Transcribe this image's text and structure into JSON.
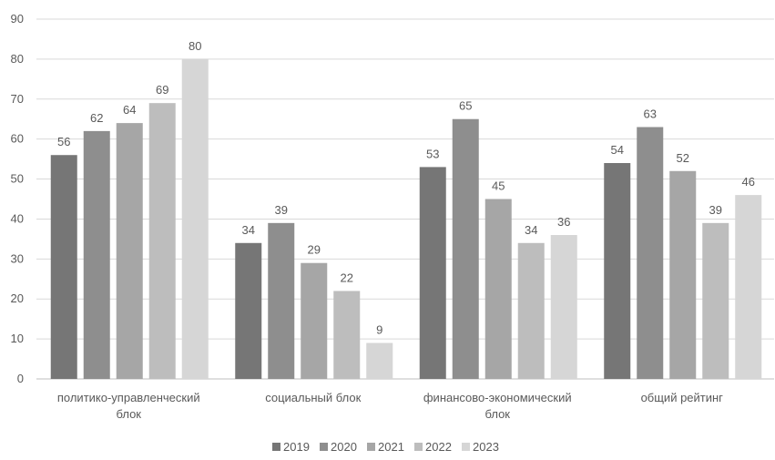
{
  "chart_data": {
    "type": "bar",
    "title": "",
    "xlabel": "",
    "ylabel": "",
    "ylim": [
      0,
      90
    ],
    "yticks": [
      0,
      10,
      20,
      30,
      40,
      50,
      60,
      70,
      80,
      90
    ],
    "grid": true,
    "legend_position": "bottom",
    "categories": [
      [
        "политико-управленческий",
        "блок"
      ],
      [
        "социальный блок"
      ],
      [
        "финансово-экономический",
        "блок"
      ],
      [
        "общий рейтинг"
      ]
    ],
    "series": [
      {
        "name": "2019",
        "color": "#767676",
        "values": [
          56,
          34,
          53,
          54
        ]
      },
      {
        "name": "2020",
        "color": "#8e8e8e",
        "values": [
          62,
          39,
          65,
          63
        ]
      },
      {
        "name": "2021",
        "color": "#a6a6a6",
        "values": [
          64,
          29,
          45,
          52
        ]
      },
      {
        "name": "2022",
        "color": "#bdbdbd",
        "values": [
          69,
          22,
          34,
          39
        ]
      },
      {
        "name": "2023",
        "color": "#d6d6d6",
        "values": [
          80,
          9,
          36,
          46
        ]
      }
    ]
  }
}
